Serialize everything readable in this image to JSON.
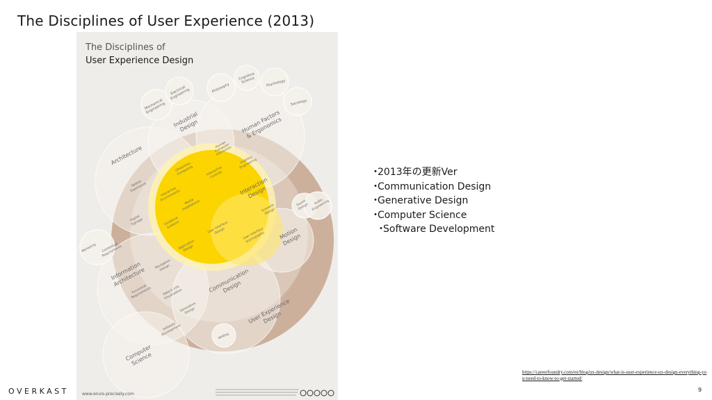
{
  "slide": {
    "title": "The Disciplines of User Experience (2013)",
    "bullets": [
      "2013年の更新Ver",
      "Communication Design",
      "Generative Design",
      "Computer Science",
      "Software Development"
    ],
    "bullet_marker": "・",
    "link": "https://careerfoundry.com/en/blog/ux-design/what-is-user-experience-ux-design-everything-you-need-to-know-to-get-started/",
    "brand": "OVERKAST",
    "page_number": "9"
  },
  "poster": {
    "title_line1": "The Disciplines of",
    "title_line2": "User Experience Design",
    "website": "www.envis-precisely.com",
    "labels": {
      "mechanical_engineering": [
        "Mechanical",
        "Engineering"
      ],
      "electrical_engineering": [
        "Electrical",
        "Engineering"
      ],
      "philosophy": [
        "Philosophy"
      ],
      "cognitive_science": [
        "Cognitive",
        "Science"
      ],
      "psychology": [
        "Psychology"
      ],
      "sociology": [
        "Sociology"
      ],
      "industrial_design": [
        "Industrial",
        "Design"
      ],
      "human_factors": [
        "Human Factors",
        "& Ergonomics"
      ],
      "architecture": [
        "Architecture"
      ],
      "hci": [
        "Human",
        "Computer",
        "Interaction"
      ],
      "ubiquitous_computing": [
        "Ubiquitous",
        "Computing"
      ],
      "interactive_controls": [
        "Interactive",
        "Controls"
      ],
      "usability_engineering": [
        "Usability",
        "Engineering"
      ],
      "spatial_experience": [
        "Spatial",
        "Experience"
      ],
      "interactive_environments": [
        "Interactive",
        "Environments"
      ],
      "interaction_design": [
        "Interaction",
        "Design"
      ],
      "sound_design": [
        "Sound",
        "Design"
      ],
      "audio_engineering": [
        "Audio",
        "Engineering"
      ],
      "media_installations": [
        "Media",
        "Installations"
      ],
      "scenario_design": [
        "Scenario",
        "Design"
      ],
      "digital_signage": [
        "Digital",
        "Signage"
      ],
      "guidance_systems": [
        "Guidance",
        "Systems"
      ],
      "user_interface_design": [
        "User Interface",
        "Design"
      ],
      "user_interface_scenography": [
        "User Interface",
        "Scenography"
      ],
      "motion_design": [
        "Motion",
        "Design"
      ],
      "marketing": [
        "Marketing"
      ],
      "contextual_requirements": [
        "Contextual",
        "Requirements"
      ],
      "application_design": [
        "Application",
        "Design"
      ],
      "information_architecture": [
        "Information",
        "Architecture"
      ],
      "navigation_design": [
        "Navigation",
        "Design"
      ],
      "communication_design": [
        "Communication",
        "Design"
      ],
      "functional_requirements": [
        "Functional",
        "Requirements"
      ],
      "data_info_visualization": [
        "Data & Info",
        "Visualization"
      ],
      "generative_design": [
        "Generative",
        "Design"
      ],
      "user_experience_design": [
        "User Experience",
        "Design"
      ],
      "software_development": [
        "Software",
        "Development"
      ],
      "writing": [
        "Writing"
      ],
      "computer_science": [
        "Computer",
        "Science"
      ]
    }
  },
  "colors": {
    "poster_bg": "#efede9",
    "ux_circle": "#ccb09c",
    "ux_inner": "#dccabb",
    "interaction_core": "#fcd400",
    "interaction_glow": "#fff2b0",
    "overlay_circle": "#f4f1ea",
    "text_dark": "#1a1a1a",
    "poster_text": "#555555"
  }
}
